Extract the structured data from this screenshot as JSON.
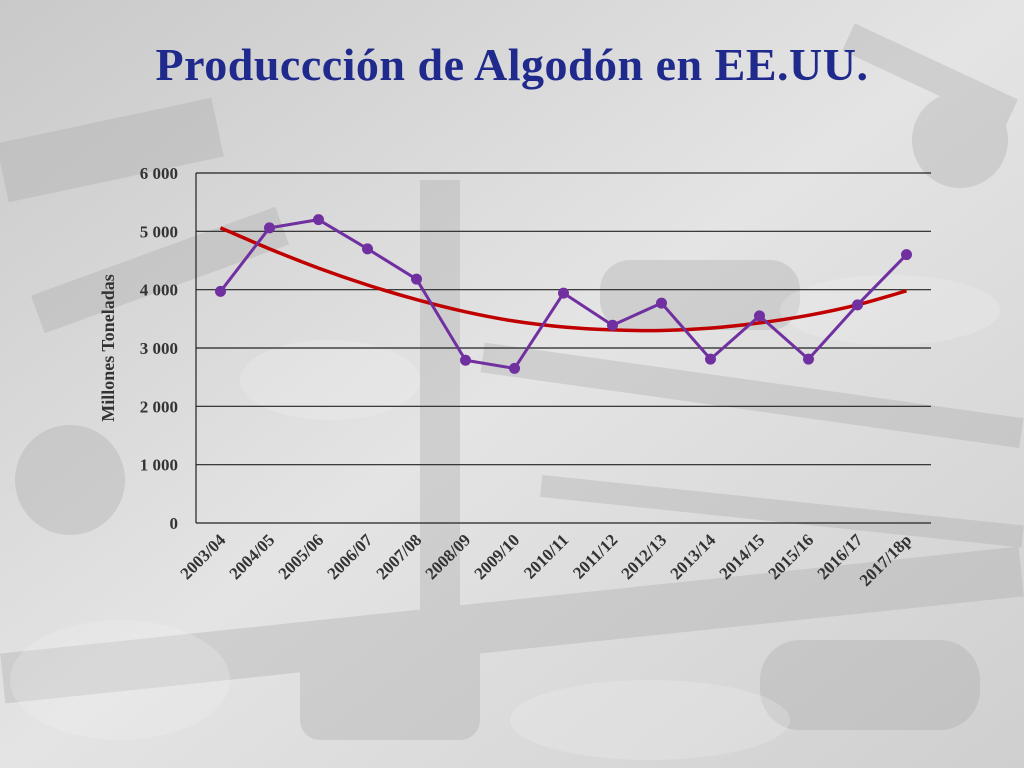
{
  "slide": {
    "title": "Produccción de Algodón en EE.UU."
  },
  "chart_data": {
    "type": "line",
    "title": "",
    "xlabel": "",
    "ylabel": "Millones Toneladas",
    "categories": [
      "2003/04",
      "2004/05",
      "2005/06",
      "2006/07",
      "2007/08",
      "2008/09",
      "2009/10",
      "2010/11",
      "2011/12",
      "2012/13",
      "2013/14",
      "2014/15",
      "2015/16",
      "2016/17",
      "2017/18p"
    ],
    "ylim": [
      0,
      6000
    ],
    "yticks": [
      0,
      1000,
      2000,
      3000,
      4000,
      5000,
      6000
    ],
    "ytick_labels": [
      "0",
      "1 000",
      "2 000",
      "3 000",
      "4 000",
      "5 000",
      "6 000"
    ],
    "grid": true,
    "series": [
      {
        "values": [
          3970,
          5060,
          5200,
          4700,
          4180,
          2790,
          2650,
          3940,
          3390,
          3770,
          2810,
          3550,
          2810,
          3740,
          4600
        ],
        "color": "#7030a0",
        "markers": true
      },
      {
        "values": [
          5060,
          4700,
          4370,
          4080,
          3830,
          3620,
          3460,
          3360,
          3310,
          3300,
          3340,
          3430,
          3560,
          3740,
          3980
        ],
        "color": "#c00000",
        "markers": false,
        "smooth": true
      }
    ]
  }
}
